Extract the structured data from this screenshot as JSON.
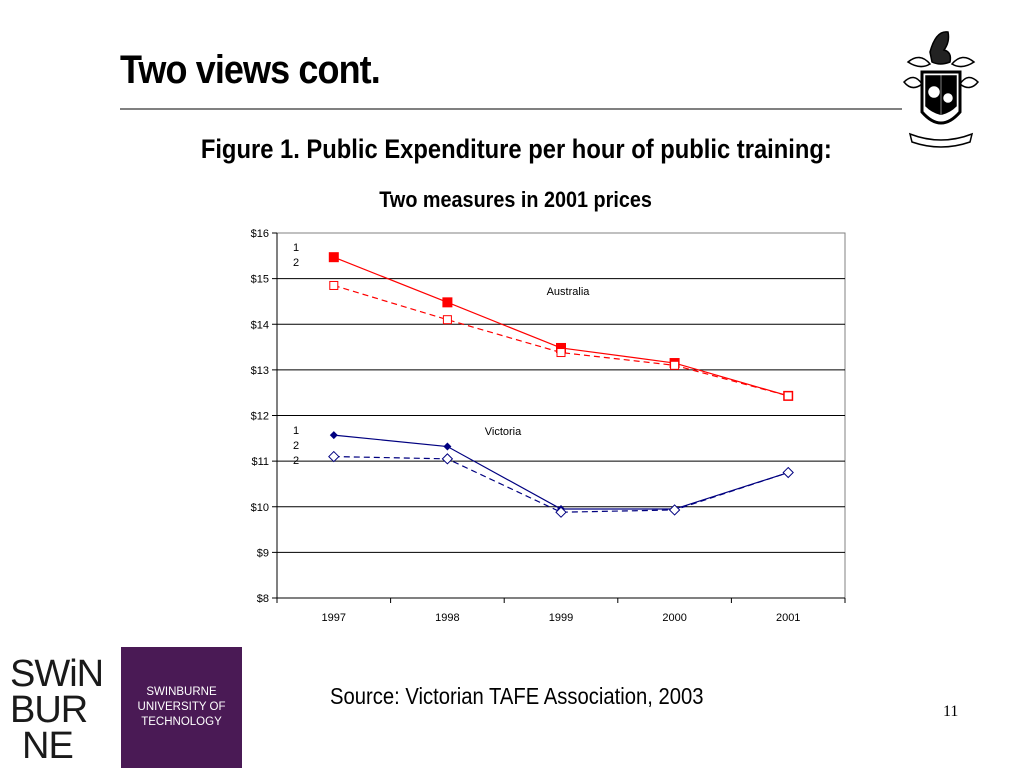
{
  "slide": {
    "title": "Two views cont.",
    "source": "Source: Victorian TAFE Association, 2003",
    "page_number": "11"
  },
  "logo": {
    "wordmark_lines": [
      "SWiN",
      "BUR",
      "NE"
    ],
    "text_lines": [
      "SWINBURNE",
      "UNIVERSITY OF",
      "TECHNOLOGY"
    ],
    "brand_color": "#4a1a55"
  },
  "crest": {
    "icon": "coat-of-arms-icon"
  },
  "chart_data": {
    "type": "line",
    "title": "Figure 1. Public Expenditure per hour of public training:",
    "subtitle": "Two measures in 2001 prices",
    "categories": [
      "1997",
      "1998",
      "1999",
      "2000",
      "2001"
    ],
    "y_ticks": [
      "$8",
      "$9",
      "$10",
      "$11",
      "$12",
      "$13",
      "$14",
      "$15",
      "$16"
    ],
    "ylim": [
      8,
      16
    ],
    "grid": true,
    "series": [
      {
        "values": [
          15.47,
          14.48,
          13.48,
          13.15,
          12.43
        ],
        "color": "#ff0000",
        "style": "solid",
        "marker": "filled-square"
      },
      {
        "values": [
          14.85,
          14.1,
          13.38,
          13.1,
          12.43
        ],
        "color": "#ff0000",
        "style": "dashed",
        "marker": "open-square"
      },
      {
        "values": [
          11.57,
          11.32,
          9.95,
          9.95,
          10.75
        ],
        "color": "#000080",
        "style": "solid",
        "marker": "filled-diamond"
      },
      {
        "values": [
          11.1,
          11.05,
          9.88,
          9.93,
          10.75
        ],
        "color": "#000080",
        "style": "dashed",
        "marker": "open-diamond"
      }
    ],
    "annotations": {
      "australia": "Australia",
      "victoria": "Victoria",
      "legend_australia": [
        "1",
        "2"
      ],
      "legend_victoria": [
        "1",
        "2",
        "2"
      ]
    }
  }
}
